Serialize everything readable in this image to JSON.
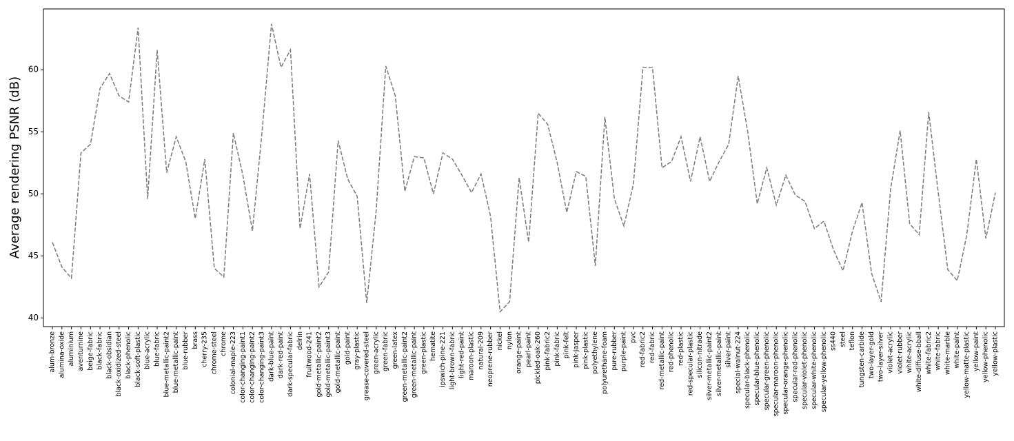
{
  "chart_data": {
    "type": "line",
    "y_label": "Average rendering PSNR (dB)",
    "categories": [
      "alum-bronze",
      "alumina-oxide",
      "aluminium",
      "aventurnine",
      "beige-fabric",
      "black-fabric",
      "black-obsidian",
      "black-oxidized-steel",
      "black-phenolic",
      "black-soft-plastic",
      "blue-acrylic",
      "blue-fabric",
      "blue-metallic-paint2",
      "blue-metallic-paint",
      "blue-rubber",
      "brass",
      "cherry-235",
      "chrome-steel",
      "chrome",
      "colonial-maple-223",
      "color-changing-paint1",
      "color-changing-paint2",
      "color-changing-paint3",
      "dark-blue-paint",
      "dark-red-paint",
      "dark-specular-fabric",
      "delrin",
      "fruitwood-241",
      "gold-metallic-paint2",
      "gold-metallic-paint3",
      "gold-metallic-paint",
      "gold-paint",
      "gray-plastic",
      "grease-covered-steel",
      "green-acrylic",
      "green-fabric",
      "green-latex",
      "green-metallic-paint2",
      "green-metallic-paint",
      "green-plastic",
      "hematite",
      "ipswich-pine-221",
      "light-brown-fabric",
      "light-red-paint",
      "maroon-plastic",
      "natural-209",
      "neoprene-rubber",
      "nickel",
      "nylon",
      "orange-paint",
      "pearl-paint",
      "pickled-oak-260",
      "pink-fabric2",
      "pink-fabric",
      "pink-felt",
      "pink-jasper",
      "pink-plastic",
      "polyethylene",
      "polyurethane-foam",
      "pure-rubber",
      "purple-paint",
      "pvc",
      "red-fabric2",
      "red-fabric",
      "red-metallic-paint",
      "red-phenolic",
      "red-plastic",
      "red-specular-plastic",
      "silicon-nitrade",
      "silver-metallic-paint2",
      "silver-metallic-paint",
      "silver-paint",
      "special-walnut-224",
      "specular-black-phenolic",
      "specular-blue-phenolic",
      "specular-green-phenolic",
      "specular-maroon-phenolic",
      "specular-orange-phenolic",
      "specular-red-phenolic",
      "specular-violet-phenolic",
      "specular-white-phenolic",
      "specular-yellow-phenolic",
      "ss440",
      "steel",
      "teflon",
      "tungsten-carbide",
      "two-layer-gold",
      "two-layer-silver",
      "violet-acrylic",
      "violet-rubber",
      "white-acrylic",
      "white-diffuse-bball",
      "white-fabric2",
      "white-fabric",
      "white-marble",
      "white-paint",
      "yellow-matte-plastic",
      "yellow-paint",
      "yellow-phenolic",
      "yellow-plastic"
    ],
    "values": [
      46.1,
      44.1,
      43.2,
      53.3,
      54.0,
      58.5,
      59.7,
      57.9,
      57.4,
      63.4,
      49.6,
      61.6,
      51.7,
      54.6,
      52.6,
      48.0,
      52.8,
      44.0,
      43.3,
      54.9,
      51.5,
      47.0,
      54.9,
      63.7,
      60.2,
      61.6,
      47.2,
      51.6,
      42.5,
      43.7,
      54.3,
      51.2,
      49.8,
      41.2,
      48.7,
      60.3,
      57.9,
      50.2,
      53.0,
      52.9,
      50.0,
      53.3,
      52.8,
      51.5,
      50.1,
      51.6,
      48.2,
      40.5,
      41.3,
      51.3,
      46.1,
      56.5,
      55.6,
      52.5,
      48.5,
      51.8,
      51.4,
      44.2,
      56.2,
      49.6,
      47.4,
      50.8,
      60.2,
      60.2,
      52.1,
      52.6,
      54.6,
      51.0,
      54.6,
      51.0,
      52.6,
      54.0,
      59.5,
      55.0,
      49.2,
      52.1,
      49.1,
      51.5,
      49.9,
      49.4,
      47.2,
      47.8,
      45.5,
      43.8,
      47.0,
      49.3,
      43.6,
      41.3,
      50.4,
      55.1,
      47.6,
      46.7,
      56.6,
      50.1,
      43.9,
      43.0,
      46.7,
      52.8,
      46.4,
      50.1
    ],
    "color": "#808080",
    "line_style": "dashed",
    "ylim": [
      39.3,
      64.9
    ],
    "yticks": [
      40,
      45,
      50,
      55,
      60
    ]
  }
}
